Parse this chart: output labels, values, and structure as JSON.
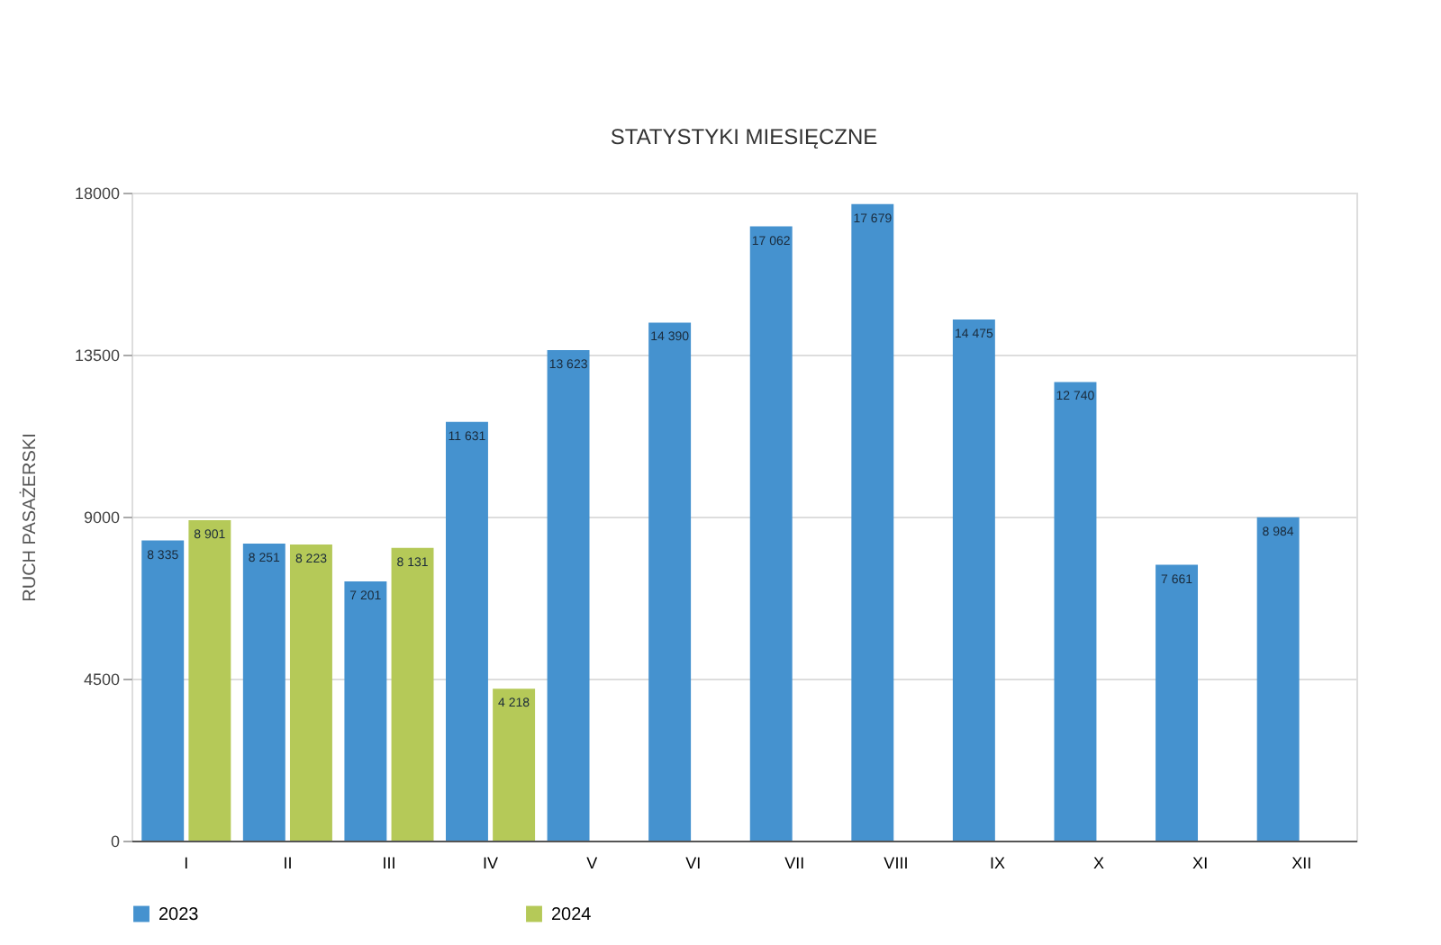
{
  "chart_data": {
    "type": "bar",
    "title": "STATYSTYKI MIESIĘCZNE",
    "ylabel": "RUCH PASAŻERSKI",
    "categories": [
      "I",
      "II",
      "III",
      "IV",
      "V",
      "VI",
      "VII",
      "VIII",
      "IX",
      "X",
      "XI",
      "XII"
    ],
    "series": [
      {
        "name": "2023",
        "color": "#4592cf",
        "values": [
          8335,
          8251,
          7201,
          11631,
          13623,
          14390,
          17062,
          17679,
          14475,
          12740,
          7661,
          8984
        ],
        "value_labels": [
          "8 335",
          "8 251",
          "7 201",
          "11 631",
          "13 623",
          "14 390",
          "17 062",
          "17 679",
          "14 475",
          "12 740",
          "7 661",
          "8 984"
        ]
      },
      {
        "name": "2024",
        "color": "#b5c958",
        "values": [
          8901,
          8223,
          8131,
          4218,
          null,
          null,
          null,
          null,
          null,
          null,
          null,
          null
        ],
        "value_labels": [
          "8 901",
          "8 223",
          "8 131",
          "4 218",
          null,
          null,
          null,
          null,
          null,
          null,
          null,
          null
        ]
      }
    ],
    "ylim": [
      0,
      18000
    ],
    "yticks": [
      0,
      4500,
      9000,
      13500,
      18000
    ],
    "grid": "y",
    "legend": "bottom"
  }
}
